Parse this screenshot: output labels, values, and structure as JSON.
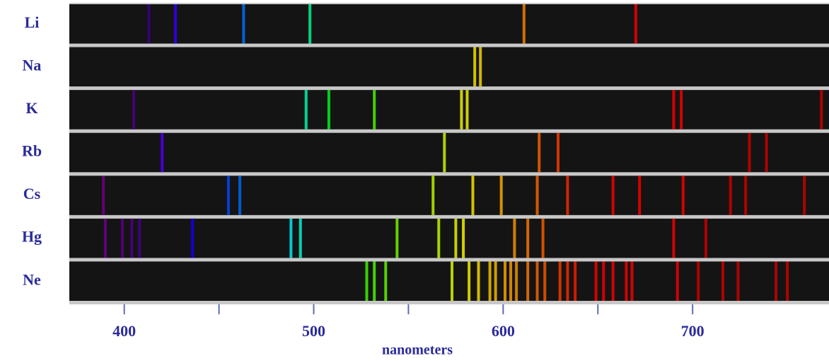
{
  "chart_data": {
    "type": "spectra",
    "x_label": "nanometers",
    "xlim": [
      371,
      772
    ],
    "xticks": [
      400,
      500,
      600,
      700
    ],
    "minor_xticks": [
      450,
      550,
      650
    ],
    "series": [
      {
        "name": "Li",
        "values": [
          413,
          427,
          463,
          498,
          611,
          670
        ]
      },
      {
        "name": "Na",
        "values": [
          585,
          588
        ]
      },
      {
        "name": "K",
        "values": [
          405,
          496,
          508,
          532,
          578,
          581,
          690,
          694,
          768
        ]
      },
      {
        "name": "Rb",
        "values": [
          420,
          569,
          619,
          629,
          730,
          739
        ]
      },
      {
        "name": "Cs",
        "values": [
          389,
          455,
          461,
          563,
          584,
          599,
          618,
          634,
          658,
          672,
          695,
          720,
          728,
          759
        ]
      },
      {
        "name": "Hg",
        "values": [
          390,
          399,
          404,
          408,
          436,
          488,
          493,
          544,
          566,
          575,
          579,
          606,
          613,
          621,
          690,
          707
        ]
      },
      {
        "name": "Ne",
        "values": [
          528,
          532,
          538,
          573,
          582,
          587,
          593,
          596,
          601,
          604,
          607,
          613,
          618,
          622,
          630,
          634,
          638,
          649,
          653,
          658,
          665,
          668,
          692,
          703,
          716,
          724,
          744,
          750
        ]
      }
    ]
  }
}
